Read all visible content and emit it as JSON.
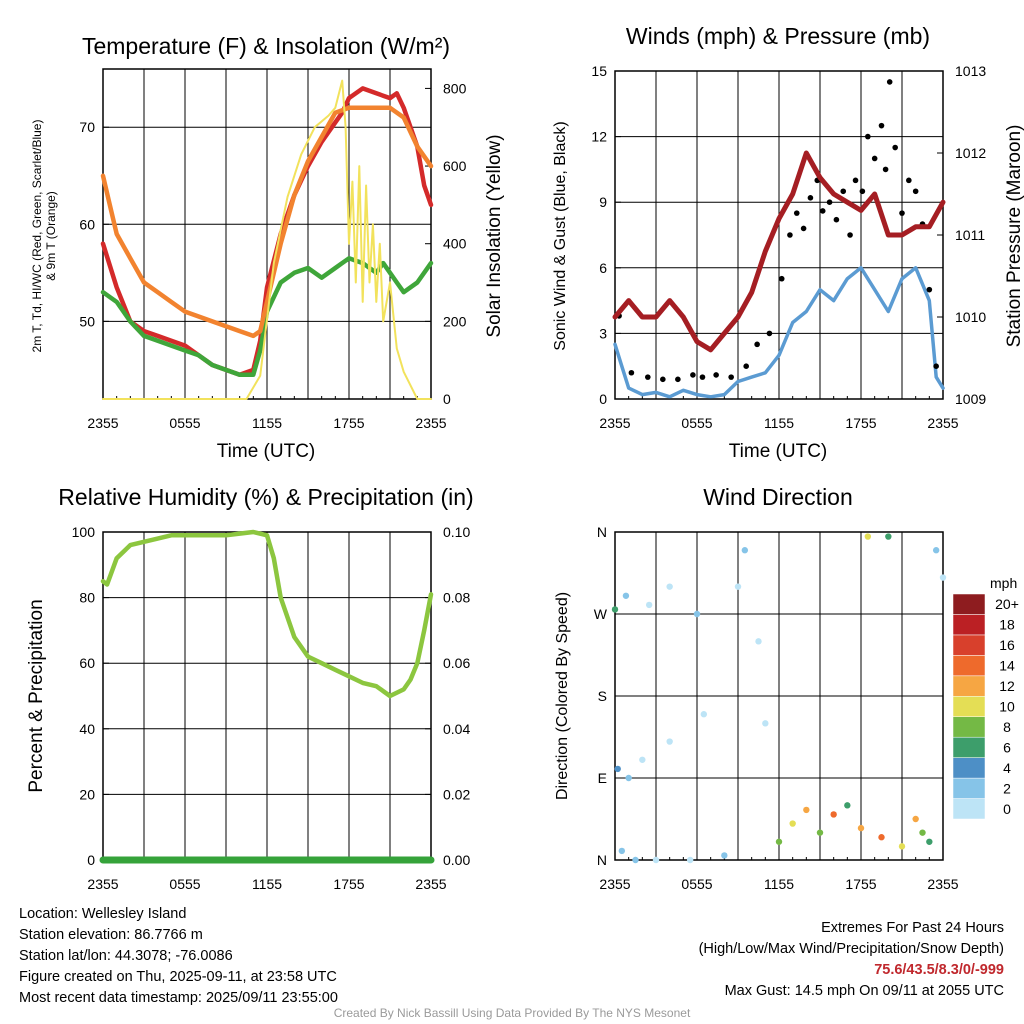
{
  "panels": {
    "temperature": {
      "title": "Temperature (F) & Insolation (W/m²)",
      "ylabel_left_lines": [
        "2m T, Td, HI/WC (Red, Green, Scarlet/Blue)",
        "& 9m T (Orange)"
      ],
      "ylabel_right": "Solar Insolation (Yellow)",
      "xlabel": "Time (UTC)",
      "left_ticks": [
        "50",
        "60",
        "70"
      ],
      "right_ticks": [
        "0",
        "200",
        "400",
        "600",
        "800"
      ]
    },
    "winds": {
      "title": "Winds (mph) & Pressure (mb)",
      "ylabel_left": "Sonic Wind & Gust (Blue, Black)",
      "ylabel_right": "Station Pressure (Maroon)",
      "xlabel": "Time (UTC)",
      "left_ticks": [
        "0",
        "3",
        "6",
        "9",
        "12",
        "15"
      ],
      "right_ticks": [
        "1009",
        "1010",
        "1011",
        "1012",
        "1013"
      ]
    },
    "humidity": {
      "title": "Relative Humidity (%) & Precipitation (in)",
      "ylabel_left": "Percent & Precipitation",
      "left_ticks": [
        "0",
        "20",
        "40",
        "60",
        "80",
        "100"
      ],
      "right_ticks": [
        "0.00",
        "0.02",
        "0.04",
        "0.06",
        "0.08",
        "0.10"
      ]
    },
    "wind_direction": {
      "title": "Wind Direction",
      "ylabel_left": "Direction (Colored By Speed)",
      "left_ticks": [
        "N",
        "E",
        "S",
        "W",
        "N"
      ]
    }
  },
  "x_ticks": [
    "2355",
    "0555",
    "1155",
    "1755",
    "2355"
  ],
  "colorbar": {
    "unit": "mph",
    "labels": [
      "0",
      "2",
      "4",
      "6",
      "8",
      "10",
      "12",
      "14",
      "16",
      "18",
      "20+"
    ],
    "colors": [
      "#bde4f6",
      "#86c4e8",
      "#4d8fc6",
      "#3d9e6b",
      "#74b945",
      "#e4de55",
      "#f6a643",
      "#ee6a2c",
      "#d8402c",
      "#bb2024",
      "#8e1c1f"
    ]
  },
  "info_left": [
    "Location: Wellesley Island",
    "Station elevation: 86.7766 m",
    "Station lat/lon: 44.3078; -76.0086",
    "Figure created on Thu, 2025-09-11, at 23:58 UTC",
    "Most recent data timestamp: 2025/09/11 23:55:00"
  ],
  "extremes": {
    "title": "Extremes For Past 24 Hours",
    "subtitle": "(High/Low/Max Wind/Precipitation/Snow Depth)",
    "values": "75.6/43.5/8.3/0/-999",
    "max_gust": "Max Gust: 14.5 mph On 09/11 at 2055 UTC"
  },
  "credit": "Created By Nick Bassill Using Data Provided By The NYS Mesonet",
  "chart_data": [
    {
      "type": "line",
      "x_unit": "hours since 2355 UTC",
      "xlim": [
        0,
        24
      ],
      "ylim": [
        42,
        76
      ],
      "y2lim": [
        0,
        850
      ],
      "series": [
        {
          "axis": "left",
          "color": "#d42a2a",
          "x": [
            0,
            1,
            2,
            3,
            4,
            5,
            6,
            7,
            8,
            9,
            10,
            11,
            11.5,
            12,
            13,
            14,
            15,
            16,
            17,
            17.5,
            18,
            19,
            20,
            21,
            21.5,
            22,
            23,
            23.5,
            24
          ],
          "y": [
            58,
            53.5,
            50,
            49,
            48.5,
            48,
            47.5,
            46.5,
            45.5,
            45,
            44.5,
            45,
            48,
            53.5,
            59,
            63,
            66,
            68.5,
            70.5,
            71.5,
            73,
            74,
            73.5,
            73,
            73.5,
            72,
            68,
            64,
            62
          ]
        },
        {
          "axis": "left",
          "color": "#3fa63a",
          "x": [
            0,
            1,
            2,
            3,
            4,
            5,
            6,
            7,
            8,
            9,
            10,
            11,
            11.5,
            12,
            13,
            14,
            15,
            16,
            17,
            17.5,
            18,
            19,
            20,
            20.5,
            21,
            21.5,
            22,
            23,
            24
          ],
          "y": [
            53,
            52,
            50,
            48.5,
            48,
            47.5,
            47,
            46.5,
            45.5,
            45,
            44.5,
            44.5,
            47,
            51,
            54,
            55,
            55.5,
            54.5,
            55.5,
            56,
            56.5,
            56,
            55,
            56,
            55,
            54,
            53,
            54,
            56
          ]
        },
        {
          "axis": "left",
          "color": "#f2832f",
          "x": [
            0,
            0.5,
            1,
            2,
            3,
            4,
            5,
            6,
            7,
            8,
            9,
            10,
            11,
            11.5,
            12,
            13,
            14,
            15,
            16,
            17,
            18,
            19,
            20,
            21,
            22,
            23,
            24
          ],
          "y": [
            65,
            62,
            59,
            56.5,
            54,
            53,
            52,
            51,
            50.5,
            50,
            49.5,
            49,
            48.5,
            49,
            52,
            58,
            63,
            66.5,
            69,
            71.5,
            72,
            72,
            72,
            72,
            71,
            68,
            66
          ]
        },
        {
          "axis": "right",
          "color": "#f2e25c",
          "x": [
            0,
            10.5,
            11.5,
            12.5,
            13.5,
            14.5,
            15.5,
            16.5,
            17,
            17.5,
            17.75,
            18,
            18.25,
            18.5,
            18.75,
            19,
            19.25,
            19.5,
            19.75,
            20,
            20.25,
            20.5,
            21,
            21.5,
            22,
            23,
            24
          ],
          "y": [
            0,
            0,
            60,
            350,
            520,
            630,
            700,
            730,
            750,
            820,
            700,
            400,
            560,
            300,
            600,
            250,
            550,
            300,
            450,
            250,
            400,
            200,
            300,
            130,
            70,
            0,
            0
          ]
        }
      ]
    },
    {
      "type": "line",
      "x_unit": "hours since 2355 UTC",
      "xlim": [
        0,
        24
      ],
      "ylim": [
        0,
        15
      ],
      "y2lim": [
        1009,
        1013
      ],
      "series": [
        {
          "name": "",
          "axis": "left",
          "color": "#5b9bd2",
          "x": [
            0,
            0.5,
            1,
            2,
            3,
            4,
            5,
            6,
            7,
            8,
            9,
            10,
            11,
            12,
            13,
            14,
            15,
            16,
            17,
            18,
            19,
            20,
            21,
            22,
            23,
            23.5,
            24
          ],
          "y": [
            2.5,
            1.5,
            0.5,
            0.2,
            0.3,
            0.1,
            0.4,
            0.2,
            0.1,
            0.2,
            0.8,
            1.0,
            1.2,
            2.0,
            3.5,
            4.0,
            5.0,
            4.5,
            5.5,
            6.0,
            5.0,
            4.0,
            5.5,
            6.0,
            4.5,
            1.0,
            0.5
          ]
        },
        {
          "name": "",
          "axis": "left",
          "type": "scatter",
          "color": "#000000",
          "x": [
            0.3,
            1.2,
            2.4,
            3.5,
            4.6,
            5.7,
            6.4,
            7.4,
            8.5,
            9.6,
            10.4,
            11.3,
            12.2,
            12.8,
            13.3,
            13.8,
            14.3,
            14.8,
            15.2,
            15.7,
            16.2,
            16.7,
            17.2,
            17.6,
            18.1,
            18.5,
            19.0,
            19.5,
            19.8,
            20.1,
            20.5,
            21.0,
            21.5,
            22.0,
            22.5,
            23.0,
            23.5
          ],
          "y": [
            3.8,
            1.2,
            1.0,
            0.9,
            0.9,
            1.1,
            1.0,
            1.1,
            1.0,
            1.5,
            2.5,
            3.0,
            5.5,
            7.5,
            8.5,
            7.8,
            9.2,
            10.0,
            8.6,
            9.0,
            8.2,
            9.5,
            7.5,
            10.0,
            9.5,
            12.0,
            11.0,
            12.5,
            10.5,
            14.5,
            11.5,
            8.5,
            10.0,
            9.5,
            8.0,
            5.0,
            1.5
          ]
        },
        {
          "name": "",
          "axis": "right",
          "color": "#a51e23",
          "x": [
            0,
            1,
            2,
            3,
            4,
            5,
            6,
            7,
            8,
            9,
            10,
            11,
            12,
            13,
            14,
            15,
            16,
            17,
            18,
            19,
            20,
            21,
            22,
            23,
            24
          ],
          "y": [
            1010.0,
            1010.2,
            1010.0,
            1010.0,
            1010.2,
            1010.0,
            1009.7,
            1009.6,
            1009.8,
            1010.0,
            1010.3,
            1010.8,
            1011.2,
            1011.5,
            1012.0,
            1011.7,
            1011.5,
            1011.4,
            1011.3,
            1011.5,
            1011.0,
            1011.0,
            1011.1,
            1011.1,
            1011.4
          ]
        }
      ]
    },
    {
      "type": "line",
      "x_unit": "hours since 2355 UTC",
      "xlim": [
        0,
        24
      ],
      "ylim": [
        0,
        100
      ],
      "y2lim": [
        0,
        0.1
      ],
      "series": [
        {
          "name": "",
          "axis": "left",
          "color": "#8cc63f",
          "x": [
            0,
            0.3,
            1,
            2,
            3,
            4,
            5,
            6,
            7,
            8,
            9,
            10,
            11,
            12,
            12.5,
            13,
            14,
            15,
            16,
            17,
            18,
            19,
            20,
            21,
            22,
            22.5,
            23,
            23.5,
            24
          ],
          "y": [
            85,
            84,
            92,
            96,
            97,
            98,
            99,
            99,
            99,
            99,
            99,
            99.5,
            100,
            99,
            92,
            80,
            68,
            62,
            60,
            58,
            56,
            54,
            53,
            50,
            52,
            55,
            60,
            70,
            81
          ]
        },
        {
          "name": "",
          "axis": "right",
          "color": "#35a33a",
          "x": [
            0,
            24
          ],
          "y": [
            0,
            0
          ]
        }
      ]
    },
    {
      "type": "scatter",
      "x_unit": "hours since 2355 UTC",
      "y_categories": [
        "N",
        "E",
        "S",
        "W",
        "N"
      ],
      "xlim": [
        0,
        24
      ],
      "ylim": [
        0,
        360
      ],
      "color_by": "wind speed (mph)",
      "points": [
        {
          "x": 0.5,
          "y": 10,
          "s": 1
        },
        {
          "x": 1.5,
          "y": 0,
          "s": 1
        },
        {
          "x": 3.0,
          "y": 0,
          "s": 0
        },
        {
          "x": 5.5,
          "y": 0,
          "s": 0
        },
        {
          "x": 8.0,
          "y": 5,
          "s": 1
        },
        {
          "x": 0.2,
          "y": 100,
          "s": 2
        },
        {
          "x": 1.0,
          "y": 90,
          "s": 1
        },
        {
          "x": 2.0,
          "y": 110,
          "s": 0
        },
        {
          "x": 4.0,
          "y": 130,
          "s": 0
        },
        {
          "x": 6.5,
          "y": 160,
          "s": 0
        },
        {
          "x": 0.8,
          "y": 290,
          "s": 1
        },
        {
          "x": 2.5,
          "y": 280,
          "s": 0
        },
        {
          "x": 4.0,
          "y": 300,
          "s": 0
        },
        {
          "x": 6.0,
          "y": 270,
          "s": 1
        },
        {
          "x": 9.0,
          "y": 300,
          "s": 0
        },
        {
          "x": 0.0,
          "y": 275,
          "s": 3
        },
        {
          "x": 9.5,
          "y": 340,
          "s": 1
        },
        {
          "x": 10.5,
          "y": 240,
          "s": 0
        },
        {
          "x": 11.0,
          "y": 150,
          "s": 0
        },
        {
          "x": 12.0,
          "y": 20,
          "s": 4
        },
        {
          "x": 13.0,
          "y": 40,
          "s": 5
        },
        {
          "x": 14.0,
          "y": 55,
          "s": 6
        },
        {
          "x": 15.0,
          "y": 30,
          "s": 4
        },
        {
          "x": 16.0,
          "y": 50,
          "s": 7
        },
        {
          "x": 17.0,
          "y": 60,
          "s": 3
        },
        {
          "x": 18.0,
          "y": 35,
          "s": 6
        },
        {
          "x": 18.5,
          "y": 355,
          "s": 5
        },
        {
          "x": 19.5,
          "y": 25,
          "s": 7
        },
        {
          "x": 20.0,
          "y": 355,
          "s": 3
        },
        {
          "x": 21.0,
          "y": 15,
          "s": 5
        },
        {
          "x": 22.0,
          "y": 45,
          "s": 6
        },
        {
          "x": 22.5,
          "y": 30,
          "s": 4
        },
        {
          "x": 23.0,
          "y": 20,
          "s": 3
        },
        {
          "x": 23.5,
          "y": 340,
          "s": 1
        },
        {
          "x": 24.0,
          "y": 310,
          "s": 0
        }
      ]
    }
  ]
}
